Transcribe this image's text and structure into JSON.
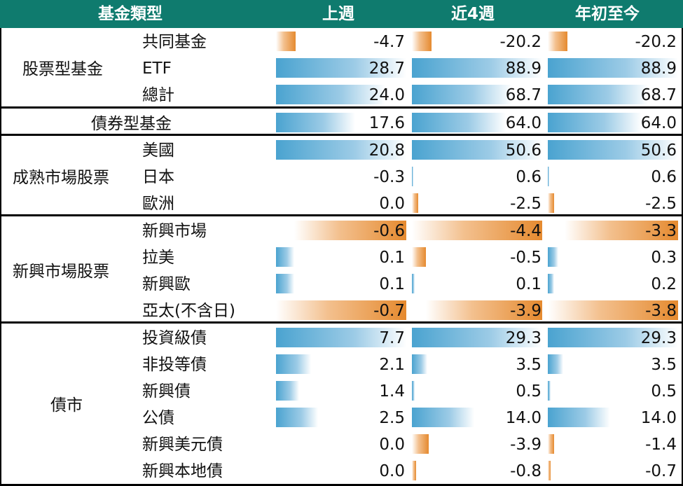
{
  "header": {
    "col_type": "基金類型",
    "col_week": "上週",
    "col_4w": "近4週",
    "col_ytd": "年初至今"
  },
  "colors": {
    "header_bg": "#0f7b6e",
    "positive_bar": "#4aa3d0",
    "negative_bar": "#e58a2f"
  },
  "groups": [
    {
      "name": "股票型基金",
      "rows": [
        {
          "label": "共同基金",
          "values": [
            "-4.7",
            "-20.2",
            "-20.2"
          ],
          "fills": [
            -0.15,
            -0.15,
            -0.15
          ]
        },
        {
          "label": "ETF",
          "values": [
            "28.7",
            "88.9",
            "88.9"
          ],
          "fills": [
            1.0,
            1.0,
            1.0
          ]
        },
        {
          "label": "總計",
          "values": [
            "24.0",
            "68.7",
            "68.7"
          ],
          "fills": [
            0.84,
            0.77,
            0.77
          ]
        }
      ]
    },
    {
      "name": "債券型基金",
      "rows": [
        {
          "label": "",
          "values": [
            "17.6",
            "64.0",
            "64.0"
          ],
          "fills": [
            0.61,
            0.72,
            0.72
          ]
        }
      ]
    },
    {
      "name": "成熟市場股票",
      "rows": [
        {
          "label": "美國",
          "values": [
            "20.8",
            "50.6",
            "50.6"
          ],
          "fills": [
            1.0,
            1.0,
            1.0
          ]
        },
        {
          "label": "日本",
          "values": [
            "-0.3",
            "0.6",
            "0.6"
          ],
          "fills": [
            0.0,
            0.01,
            0.01
          ]
        },
        {
          "label": "歐洲",
          "values": [
            "0.0",
            "-2.5",
            "-2.5"
          ],
          "fills": [
            0.0,
            -0.05,
            -0.05
          ]
        }
      ]
    },
    {
      "name": "新興市場股票",
      "rows": [
        {
          "label": "新興市場",
          "values": [
            "-0.6",
            "-4.4",
            "-3.3"
          ],
          "fills": [
            -0.86,
            -1.0,
            -0.87
          ]
        },
        {
          "label": "拉美",
          "values": [
            "0.1",
            "-0.5",
            "0.3"
          ],
          "fills": [
            0.14,
            -0.11,
            0.08
          ]
        },
        {
          "label": "新興歐",
          "values": [
            "0.1",
            "0.1",
            "0.2"
          ],
          "fills": [
            0.14,
            0.02,
            0.05
          ]
        },
        {
          "label": "亞太(不含日)",
          "values": [
            "-0.7",
            "-3.9",
            "-3.8"
          ],
          "fills": [
            -1.0,
            -0.89,
            -1.0
          ]
        }
      ]
    },
    {
      "name": "債市",
      "rows": [
        {
          "label": "投資級債",
          "values": [
            "7.7",
            "29.3",
            "29.3"
          ],
          "fills": [
            1.0,
            1.0,
            1.0
          ]
        },
        {
          "label": "非投等債",
          "values": [
            "2.1",
            "3.5",
            "3.5"
          ],
          "fills": [
            0.27,
            0.12,
            0.12
          ]
        },
        {
          "label": "新興債",
          "values": [
            "1.4",
            "0.5",
            "0.5"
          ],
          "fills": [
            0.18,
            0.02,
            0.02
          ]
        },
        {
          "label": "公債",
          "values": [
            "2.5",
            "14.0",
            "14.0"
          ],
          "fills": [
            0.32,
            0.48,
            0.48
          ]
        },
        {
          "label": "新興美元債",
          "values": [
            "0.0",
            "-3.9",
            "-1.4"
          ],
          "fills": [
            0.0,
            -0.13,
            -0.05
          ]
        },
        {
          "label": "新興本地債",
          "values": [
            "0.0",
            "-0.8",
            "-0.7"
          ],
          "fills": [
            0.0,
            -0.03,
            -0.02
          ]
        }
      ]
    }
  ]
}
